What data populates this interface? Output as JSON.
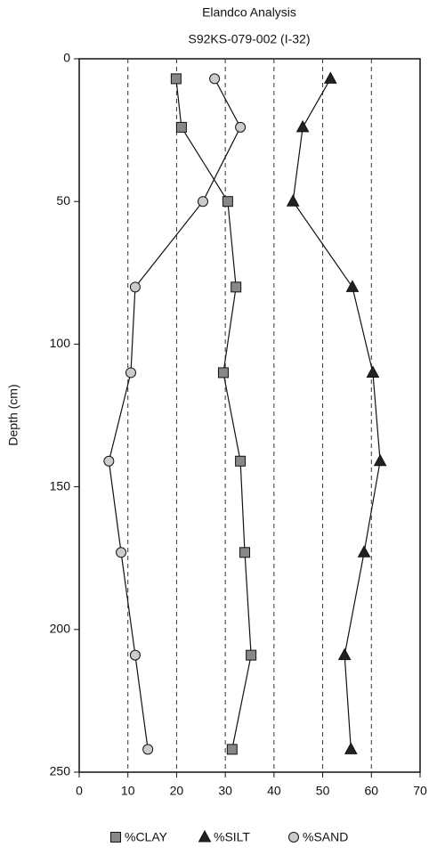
{
  "chart_data": {
    "type": "line",
    "title": "Elandco Analysis",
    "subtitle": "S92KS-079-002 (I-32)",
    "y_label": "Depth (cm)",
    "y": [
      7,
      24,
      50,
      80,
      110,
      141,
      173,
      209,
      242
    ],
    "series": [
      {
        "name": "%CLAY",
        "marker": "square",
        "color": "#888888",
        "values": [
          19.9,
          21.0,
          30.5,
          32.2,
          29.6,
          33.1,
          34.0,
          35.3,
          31.4
        ]
      },
      {
        "name": "%SILT",
        "marker": "triangle",
        "color": "#222222",
        "values": [
          51.6,
          45.9,
          43.9,
          56.1,
          60.3,
          61.8,
          58.5,
          54.5,
          55.8
        ]
      },
      {
        "name": "%SAND",
        "marker": "circle",
        "color": "#cccccc",
        "values": [
          27.8,
          33.1,
          25.4,
          11.5,
          10.6,
          6.1,
          8.6,
          11.5,
          14.1
        ]
      }
    ],
    "xlim": [
      0,
      70
    ],
    "xticks": [
      0,
      10,
      20,
      30,
      40,
      50,
      60,
      70
    ],
    "ylim": [
      0,
      250
    ],
    "yticks": [
      0,
      50,
      100,
      150,
      200,
      250
    ],
    "y_inverted": true,
    "grid": "x",
    "legend": "bottom"
  }
}
